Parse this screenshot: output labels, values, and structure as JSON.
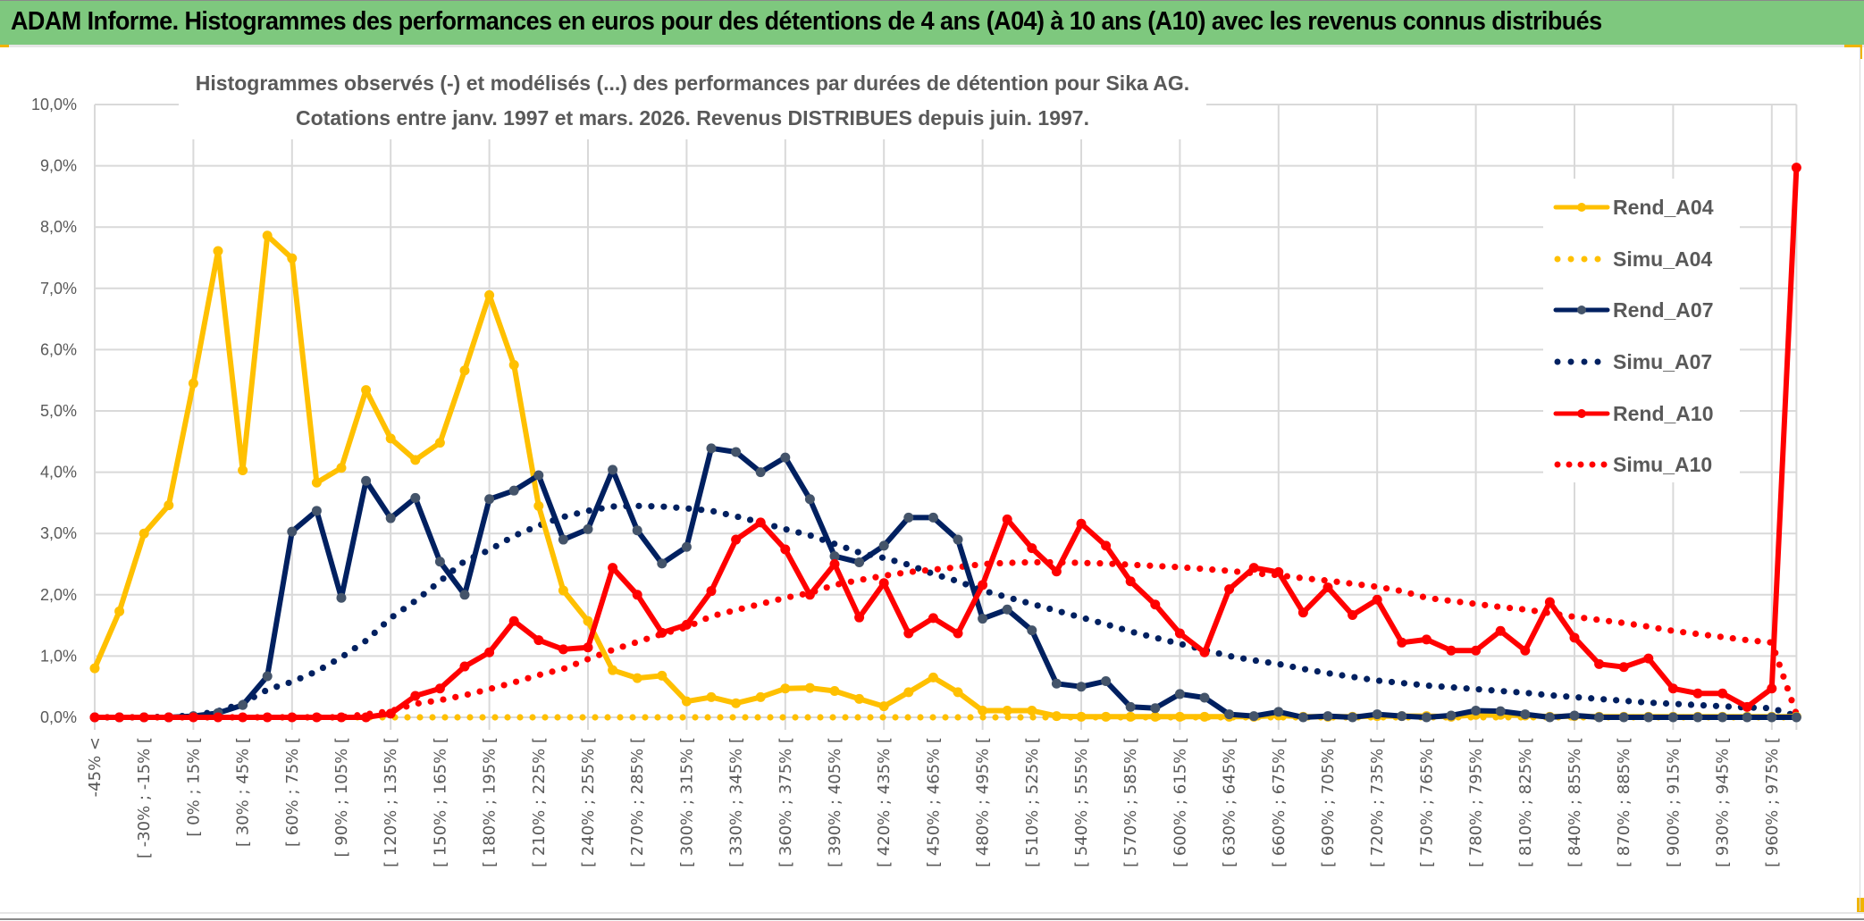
{
  "header": {
    "title": "ADAM Informe. Histogrammes des performances en euros pour des détentions de 4 ans (A04) à 10 ans (A10) avec les revenus connus distribués",
    "background_color": "#7ec87e"
  },
  "chart_data": {
    "type": "line",
    "title": "Histogrammes observés (-) et modélisés (...) des performances par durées de détention pour Sika AG.",
    "subtitle": "Cotations entre janv. 1997 et mars. 2026. Revenus DISTRIBUES depuis juin. 1997.",
    "xlabel": "",
    "ylabel": "",
    "ylim": [
      0,
      10
    ],
    "y_unit": "%",
    "y_ticks": [
      "0,0%",
      "1,0%",
      "2,0%",
      "3,0%",
      "4,0%",
      "5,0%",
      "6,0%",
      "7,0%",
      "8,0%",
      "9,0%",
      "10,0%"
    ],
    "grid": true,
    "legend_position": "right",
    "n_categories": 70,
    "x_tick_labels": [
      "-45% <",
      "[ -30% ; -15% [",
      "[ 0% ; 15% [",
      "[ 30% ; 45% [",
      "[ 60% ; 75% [",
      "[ 90% ; 105% [",
      "[ 120% ; 135% [",
      "[ 150% ; 165% [",
      "[ 180% ; 195% [",
      "[ 210% ; 225% [",
      "[ 240% ; 255% [",
      "[ 270% ; 285% [",
      "[ 300% ; 315% [",
      "[ 330% ; 345% [",
      "[ 360% ; 375% [",
      "[ 390% ; 405% [",
      "[ 420% ; 435% [",
      "[ 450% ; 465% [",
      "[ 480% ; 495% [",
      "[ 510% ; 525% [",
      "[ 540% ; 555% [",
      "[ 570% ; 585% [",
      "[ 600% ; 615% [",
      "[ 630% ; 645% [",
      "[ 660% ; 675% [",
      "[ 690% ; 705% [",
      "[ 720% ; 735% [",
      "[ 750% ; 765% [",
      "[ 780% ; 795% [",
      "[ 810% ; 825% [",
      "[ 840% ; 855% [",
      "[ 870% ; 885% [",
      "[ 900% ; 915% [",
      "[ 930% ; 945% [",
      "[ 960% ; 975% ["
    ],
    "x_tick_every": 2,
    "series": [
      {
        "name": "Rend_A04",
        "style": "solid",
        "color": "#ffc000",
        "marker_color": "#ffc000",
        "values": [
          0.8,
          1.73,
          3.0,
          3.46,
          5.45,
          7.61,
          4.03,
          7.86,
          7.49,
          3.83,
          4.07,
          5.34,
          4.55,
          4.2,
          4.48,
          5.66,
          6.89,
          5.75,
          3.45,
          2.07,
          1.57,
          0.77,
          0.64,
          0.68,
          0.26,
          0.33,
          0.23,
          0.33,
          0.47,
          0.48,
          0.43,
          0.3,
          0.18,
          0.41,
          0.65,
          0.41,
          0.11,
          0.11,
          0.11,
          0.02,
          0.01,
          0.01,
          0.01,
          0.01,
          0.01,
          0.01,
          0.01,
          0.01,
          0.03,
          0.01,
          0.01,
          0.01,
          0.02,
          0.02,
          0.02,
          0.01,
          0.04,
          0.04,
          0.03,
          0.01,
          0.02,
          0.01,
          0.01,
          0.01,
          0.01,
          0.01,
          0.01,
          0.01,
          0.01,
          0.01
        ]
      },
      {
        "name": "Simu_A04",
        "style": "dotted",
        "color": "#ffc000",
        "values": [
          0,
          0,
          0,
          0,
          0,
          0,
          0,
          0,
          0,
          0,
          0,
          0,
          0,
          0,
          0,
          0,
          0,
          0,
          0,
          0,
          0,
          0,
          0,
          0,
          0,
          0,
          0,
          0,
          0,
          0,
          0,
          0,
          0,
          0,
          0,
          0,
          0,
          0,
          0,
          0,
          0,
          0,
          0,
          0,
          0,
          0,
          0,
          0,
          0,
          0,
          0,
          0,
          0,
          0,
          0,
          0,
          0,
          0,
          0,
          0,
          0,
          0,
          0,
          0,
          0,
          0,
          0,
          0,
          0,
          0
        ]
      },
      {
        "name": "Rend_A07",
        "style": "solid",
        "color": "#002060",
        "marker_color": "#44546a",
        "values": [
          0,
          0,
          0,
          0,
          0.02,
          0.07,
          0.2,
          0.67,
          3.03,
          3.37,
          1.95,
          3.86,
          3.25,
          3.58,
          2.54,
          2.0,
          3.56,
          3.7,
          3.95,
          2.9,
          3.07,
          4.04,
          3.05,
          2.51,
          2.78,
          4.39,
          4.33,
          4.0,
          4.24,
          3.56,
          2.63,
          2.53,
          2.8,
          3.26,
          3.26,
          2.9,
          1.61,
          1.76,
          1.42,
          0.55,
          0.5,
          0.59,
          0.17,
          0.15,
          0.38,
          0.32,
          0.05,
          0.02,
          0.09,
          0.0,
          0.02,
          0.0,
          0.05,
          0.02,
          0.0,
          0.03,
          0.11,
          0.1,
          0.05,
          0.0,
          0.03,
          0.0,
          0.0,
          0.0,
          0.0,
          0.0,
          0.0,
          0.0,
          0.0,
          0.0
        ]
      },
      {
        "name": "Simu_A07",
        "style": "dotted",
        "color": "#002060",
        "values": [
          0,
          0,
          0,
          0.01,
          0.03,
          0.1,
          0.23,
          0.45,
          0.58,
          0.75,
          0.98,
          1.25,
          1.62,
          1.9,
          2.22,
          2.55,
          2.73,
          2.96,
          3.13,
          3.27,
          3.37,
          3.44,
          3.45,
          3.44,
          3.41,
          3.37,
          3.28,
          3.18,
          3.07,
          2.97,
          2.83,
          2.69,
          2.6,
          2.49,
          2.34,
          2.22,
          2.07,
          1.96,
          1.85,
          1.74,
          1.63,
          1.52,
          1.4,
          1.3,
          1.2,
          1.1,
          1.0,
          0.93,
          0.87,
          0.79,
          0.72,
          0.66,
          0.6,
          0.56,
          0.52,
          0.49,
          0.46,
          0.43,
          0.4,
          0.36,
          0.33,
          0.3,
          0.27,
          0.24,
          0.22,
          0.2,
          0.18,
          0.16,
          0.15,
          0.02
        ]
      },
      {
        "name": "Rend_A10",
        "style": "solid",
        "color": "#ff0000",
        "marker_color": "#ff0000",
        "values": [
          0,
          0,
          0,
          0,
          0,
          0,
          0,
          0,
          0,
          0,
          0,
          0,
          0.06,
          0.35,
          0.47,
          0.83,
          1.06,
          1.57,
          1.26,
          1.11,
          1.14,
          2.44,
          2.0,
          1.38,
          1.51,
          2.06,
          2.9,
          3.18,
          2.74,
          2.0,
          2.5,
          1.63,
          2.19,
          1.37,
          1.62,
          1.37,
          2.16,
          3.23,
          2.76,
          2.38,
          3.16,
          2.8,
          2.22,
          1.84,
          1.37,
          1.06,
          2.09,
          2.44,
          2.37,
          1.71,
          2.12,
          1.67,
          1.92,
          1.22,
          1.27,
          1.09,
          1.09,
          1.41,
          1.09,
          1.88,
          1.3,
          0.87,
          0.82,
          0.96,
          0.47,
          0.39,
          0.39,
          0.17,
          0.47,
          8.97
        ]
      },
      {
        "name": "Simu_A10",
        "style": "dotted",
        "color": "#ff0000",
        "values": [
          0,
          0,
          0,
          0,
          0,
          0,
          0,
          0,
          0,
          0,
          0,
          0.05,
          0.1,
          0.22,
          0.28,
          0.36,
          0.46,
          0.57,
          0.69,
          0.79,
          0.95,
          1.1,
          1.23,
          1.36,
          1.47,
          1.65,
          1.75,
          1.85,
          1.95,
          2.03,
          2.16,
          2.24,
          2.31,
          2.37,
          2.41,
          2.45,
          2.5,
          2.52,
          2.53,
          2.53,
          2.52,
          2.51,
          2.49,
          2.47,
          2.45,
          2.42,
          2.39,
          2.35,
          2.32,
          2.27,
          2.23,
          2.18,
          2.13,
          2.06,
          1.95,
          1.9,
          1.85,
          1.8,
          1.76,
          1.7,
          1.64,
          1.59,
          1.54,
          1.48,
          1.41,
          1.36,
          1.31,
          1.26,
          1.22,
          0.05
        ]
      }
    ]
  },
  "legend": {
    "items": [
      {
        "label": "Rend_A04",
        "color": "#ffc000",
        "style": "solid"
      },
      {
        "label": "Simu_A04",
        "color": "#ffc000",
        "style": "dotted"
      },
      {
        "label": "Rend_A07",
        "color": "#002060",
        "style": "solid"
      },
      {
        "label": "Simu_A07",
        "color": "#002060",
        "style": "dotted"
      },
      {
        "label": "Rend_A10",
        "color": "#ff0000",
        "style": "solid"
      },
      {
        "label": "Simu_A10",
        "color": "#ff0000",
        "style": "dotted"
      }
    ]
  }
}
